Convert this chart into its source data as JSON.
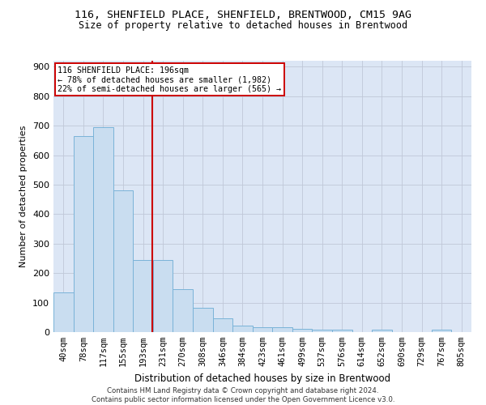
{
  "title1": "116, SHENFIELD PLACE, SHENFIELD, BRENTWOOD, CM15 9AG",
  "title2": "Size of property relative to detached houses in Brentwood",
  "xlabel": "Distribution of detached houses by size in Brentwood",
  "ylabel": "Number of detached properties",
  "footer1": "Contains HM Land Registry data © Crown copyright and database right 2024.",
  "footer2": "Contains public sector information licensed under the Open Government Licence v3.0.",
  "bar_labels": [
    "40sqm",
    "78sqm",
    "117sqm",
    "155sqm",
    "193sqm",
    "231sqm",
    "270sqm",
    "308sqm",
    "346sqm",
    "384sqm",
    "423sqm",
    "461sqm",
    "499sqm",
    "537sqm",
    "576sqm",
    "614sqm",
    "652sqm",
    "690sqm",
    "729sqm",
    "767sqm",
    "805sqm"
  ],
  "bar_values": [
    135,
    665,
    695,
    480,
    245,
    245,
    145,
    82,
    47,
    22,
    17,
    17,
    10,
    8,
    8,
    0,
    7,
    0,
    0,
    8,
    0
  ],
  "bar_color": "#c9ddf0",
  "bar_edge_color": "#7ab3d8",
  "vline_color": "#cc0000",
  "annotation_text1": "116 SHENFIELD PLACE: 196sqm",
  "annotation_text2": "← 78% of detached houses are smaller (1,982)",
  "annotation_text3": "22% of semi-detached houses are larger (565) →",
  "annotation_box_color": "#ffffff",
  "annotation_box_edge": "#cc0000",
  "ylim": [
    0,
    920
  ],
  "grid_color": "#c0c8d8",
  "background_color": "#dce6f5",
  "yticks": [
    0,
    100,
    200,
    300,
    400,
    500,
    600,
    700,
    800,
    900
  ],
  "title1_fontsize": 9.5,
  "title2_fontsize": 8.5,
  "xlabel_fontsize": 8.5,
  "ylabel_fontsize": 8,
  "tick_fontsize": 8,
  "footer_fontsize": 6.2
}
